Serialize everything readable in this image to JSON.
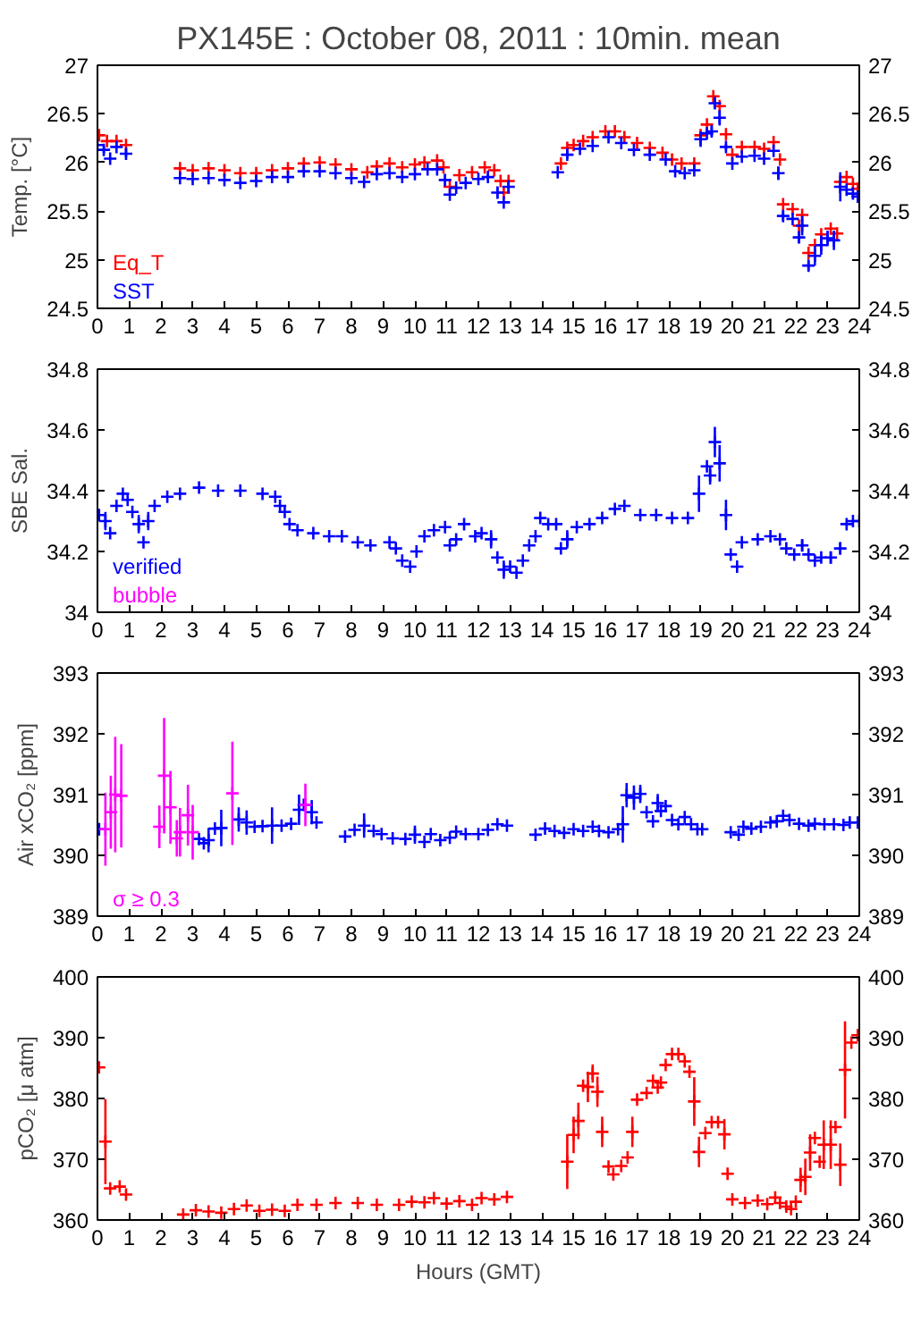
{
  "chart_data": [
    {
      "type": "scatter",
      "title": "PX145E : October 08, 2011 : 10min. mean",
      "ylabel": "Temp. [°C]",
      "xlim": [
        0,
        24
      ],
      "xticks": [
        0,
        1,
        2,
        3,
        4,
        5,
        6,
        7,
        8,
        9,
        10,
        11,
        12,
        13,
        14,
        15,
        16,
        17,
        18,
        19,
        20,
        21,
        22,
        23,
        24
      ],
      "ylim": [
        24.5,
        27
      ],
      "yticks": [
        24.5,
        25,
        25.5,
        26,
        26.5,
        27
      ],
      "y2lim": [
        24.5,
        27
      ],
      "y2ticks": [
        24.5,
        25,
        25.5,
        26,
        26.5,
        27
      ],
      "grid": false,
      "legend": "bottom left",
      "marker": "cross",
      "series": [
        {
          "name": "Eq_T",
          "color": "#ff0000",
          "x": [
            0.05,
            0.3,
            0.6,
            0.9,
            2.6,
            3,
            3.5,
            4,
            4.5,
            5,
            5.5,
            6,
            6.5,
            7,
            7.5,
            8,
            8.5,
            8.8,
            9.2,
            9.6,
            10,
            10.3,
            10.7,
            10.9,
            11.1,
            11.4,
            11.8,
            12.2,
            12.5,
            12.7,
            12.8,
            12.95,
            14.6,
            14.8,
            15,
            15.3,
            15.6,
            16,
            16.3,
            16.6,
            17,
            17.4,
            17.8,
            18.1,
            18.4,
            18.8,
            19,
            19.2,
            19.4,
            19.6,
            19.8,
            20,
            20.3,
            20.7,
            21,
            21.3,
            21.5,
            21.6,
            21.9,
            22.1,
            22.2,
            22.4,
            22.6,
            22.8,
            23.1,
            23.3,
            23.4,
            23.6,
            23.8,
            23.95
          ],
          "values": [
            26.28,
            26.22,
            26.22,
            26.18,
            25.94,
            25.92,
            25.94,
            25.92,
            25.89,
            25.89,
            25.92,
            25.94,
            25.99,
            26.0,
            25.98,
            25.93,
            25.9,
            25.96,
            25.99,
            25.95,
            25.98,
            26.0,
            26.02,
            25.95,
            25.75,
            25.87,
            25.9,
            25.95,
            25.92,
            25.81,
            25.69,
            25.81,
            25.99,
            26.15,
            26.18,
            26.22,
            26.26,
            26.32,
            26.32,
            26.26,
            26.2,
            26.15,
            26.1,
            26.03,
            25.99,
            25.99,
            26.28,
            26.39,
            26.68,
            26.58,
            26.29,
            26.08,
            26.16,
            26.16,
            26.14,
            26.21,
            26.03,
            25.57,
            25.52,
            25.35,
            25.46,
            25.07,
            25.15,
            25.26,
            25.32,
            25.27,
            25.8,
            25.85,
            25.78,
            25.73
          ]
        },
        {
          "name": "SST",
          "color": "#0000ff",
          "x": [
            0,
            0.2,
            0.4,
            0.6,
            0.9,
            2.6,
            3,
            3.5,
            4,
            4.5,
            5,
            5.5,
            6,
            6.5,
            7,
            7.5,
            8,
            8.4,
            8.8,
            9.2,
            9.6,
            10,
            10.4,
            10.7,
            10.95,
            11.1,
            11.3,
            11.6,
            12,
            12.3,
            12.6,
            12.8,
            12.95,
            14.5,
            14.8,
            15.2,
            15.6,
            16.1,
            16.5,
            16.9,
            17.4,
            17.9,
            18.2,
            18.5,
            18.8,
            19,
            19.2,
            19.35,
            19.45,
            19.6,
            19.8,
            20,
            20.3,
            20.7,
            21,
            21.3,
            21.45,
            21.6,
            21.9,
            22.1,
            22.2,
            22.4,
            22.6,
            22.8,
            23,
            23.2,
            23.4,
            23.6,
            23.8,
            23.95
          ],
          "values": [
            26.18,
            26.13,
            26.04,
            26.16,
            26.09,
            25.84,
            25.83,
            25.84,
            25.82,
            25.79,
            25.81,
            25.85,
            25.85,
            25.91,
            25.91,
            25.89,
            25.84,
            25.8,
            25.88,
            25.89,
            25.85,
            25.88,
            25.93,
            25.93,
            25.82,
            25.67,
            25.74,
            25.79,
            25.83,
            25.85,
            25.69,
            25.59,
            25.75,
            25.9,
            26.08,
            26.14,
            26.17,
            26.26,
            26.2,
            26.13,
            26.08,
            26.03,
            25.91,
            25.89,
            25.92,
            26.24,
            26.3,
            26.32,
            26.61,
            26.46,
            26.16,
            25.99,
            26.06,
            26.07,
            26.04,
            26.12,
            25.89,
            25.45,
            25.42,
            25.23,
            25.35,
            24.94,
            25.04,
            25.15,
            25.22,
            25.2,
            25.75,
            25.72,
            25.68,
            25.65
          ],
          "errors": [
            null,
            0.04,
            null,
            null,
            0.04,
            null,
            null,
            null,
            null,
            null,
            null,
            null,
            null,
            null,
            null,
            null,
            null,
            null,
            null,
            null,
            null,
            null,
            null,
            null,
            0.06,
            null,
            null,
            null,
            null,
            0.03,
            0.06,
            null,
            0.07,
            null,
            0.04,
            null,
            null,
            null,
            null,
            null,
            null,
            null,
            null,
            null,
            null,
            0.08,
            null,
            0.05,
            0.05,
            0.08,
            0.03,
            null,
            null,
            null,
            null,
            null,
            0.07,
            0.05,
            null,
            0.06,
            0.1,
            0.05,
            0.1,
            0.1,
            0.08,
            0.1,
            0.15,
            null,
            null,
            null
          ]
        }
      ]
    },
    {
      "type": "scatter",
      "ylabel": "SBE Sal.",
      "xlim": [
        0,
        24
      ],
      "xticks": [
        0,
        1,
        2,
        3,
        4,
        5,
        6,
        7,
        8,
        9,
        10,
        11,
        12,
        13,
        14,
        15,
        16,
        17,
        18,
        19,
        20,
        21,
        22,
        23,
        24
      ],
      "ylim": [
        34,
        34.8
      ],
      "yticks": [
        34,
        34.2,
        34.4,
        34.6,
        34.8
      ],
      "y2lim": [
        34,
        34.8
      ],
      "y2ticks": [
        34,
        34.2,
        34.4,
        34.6,
        34.8
      ],
      "grid": false,
      "legend": "bottom left",
      "marker": "cross",
      "series": [
        {
          "name": "verified",
          "color": "#0000ff",
          "x": [
            0.05,
            0.25,
            0.4,
            0.6,
            0.8,
            0.95,
            1.1,
            1.3,
            1.45,
            1.6,
            1.8,
            2.2,
            2.6,
            3.2,
            3.8,
            4.5,
            5.2,
            5.6,
            5.75,
            5.9,
            6.05,
            6.3,
            6.8,
            7.3,
            7.7,
            8.2,
            8.6,
            9.2,
            9.4,
            9.6,
            9.85,
            10.05,
            10.3,
            10.6,
            10.95,
            11.1,
            11.3,
            11.55,
            11.9,
            12.1,
            12.4,
            12.6,
            12.8,
            13.0,
            13.2,
            13.4,
            13.6,
            13.8,
            13.95,
            14.2,
            14.45,
            14.6,
            14.8,
            15.1,
            15.5,
            15.9,
            16.3,
            16.6,
            17.1,
            17.6,
            18.1,
            18.6,
            18.95,
            19.2,
            19.3,
            19.45,
            19.6,
            19.8,
            19.95,
            20.15,
            20.3,
            20.8,
            21.2,
            21.5,
            21.7,
            21.95,
            22.2,
            22.4,
            22.6,
            22.8,
            23.1,
            23.4,
            23.6,
            23.8,
            24
          ],
          "values": [
            34.32,
            34.3,
            34.26,
            34.35,
            34.39,
            34.37,
            34.33,
            34.29,
            34.23,
            34.3,
            34.35,
            34.38,
            34.39,
            34.41,
            34.4,
            34.4,
            34.39,
            34.38,
            34.35,
            34.33,
            34.29,
            34.27,
            34.26,
            34.25,
            34.25,
            34.23,
            34.22,
            34.23,
            34.21,
            34.17,
            34.15,
            34.2,
            34.25,
            34.27,
            34.28,
            34.22,
            34.24,
            34.29,
            34.25,
            34.26,
            34.24,
            34.18,
            34.14,
            34.15,
            34.13,
            34.17,
            34.22,
            34.25,
            34.31,
            34.29,
            34.29,
            34.21,
            34.24,
            34.28,
            34.29,
            34.31,
            34.34,
            34.35,
            34.32,
            34.32,
            34.31,
            34.31,
            34.39,
            34.48,
            34.45,
            34.56,
            34.49,
            34.32,
            34.19,
            34.15,
            34.23,
            34.24,
            34.25,
            34.24,
            34.21,
            34.19,
            34.22,
            34.19,
            34.17,
            34.18,
            34.18,
            34.21,
            34.29,
            34.3,
            34.3
          ],
          "errors": [
            null,
            0.03,
            null,
            null,
            null,
            null,
            null,
            0.03,
            null,
            0.03,
            null,
            null,
            null,
            null,
            null,
            null,
            null,
            null,
            null,
            null,
            null,
            null,
            null,
            null,
            null,
            null,
            null,
            null,
            null,
            null,
            null,
            null,
            null,
            null,
            null,
            null,
            null,
            null,
            null,
            null,
            0.03,
            null,
            0.03,
            null,
            null,
            null,
            null,
            null,
            null,
            null,
            null,
            null,
            0.03,
            null,
            null,
            null,
            null,
            null,
            null,
            null,
            null,
            null,
            0.06,
            null,
            0.03,
            0.05,
            0.06,
            0.05,
            null,
            null,
            null,
            null,
            null,
            null,
            null,
            null,
            0.02,
            null,
            null,
            null,
            0.02,
            0.02,
            null,
            null,
            null
          ]
        },
        {
          "name": "bubble",
          "color": "#ff00ff"
        }
      ]
    },
    {
      "type": "scatter",
      "ylabel": "Air xCO₂ [ppm]",
      "xlim": [
        0,
        24
      ],
      "xticks": [
        0,
        1,
        2,
        3,
        4,
        5,
        6,
        7,
        8,
        9,
        10,
        11,
        12,
        13,
        14,
        15,
        16,
        17,
        18,
        19,
        20,
        21,
        22,
        23,
        24
      ],
      "ylim": [
        389,
        393
      ],
      "yticks": [
        389,
        390,
        391,
        392,
        393
      ],
      "y2lim": [
        389,
        393
      ],
      "y2ticks": [
        389,
        390,
        391,
        392,
        393
      ],
      "grid": false,
      "legend": "bottom left",
      "marker": "cross",
      "series": [
        {
          "color": "#0000ff",
          "x": [
            0.05,
            3.2,
            3.35,
            3.5,
            3.7,
            3.9,
            4.45,
            4.7,
            4.95,
            5.2,
            5.5,
            5.8,
            6.1,
            6.35,
            6.5,
            6.75,
            6.9,
            7.8,
            8.1,
            8.4,
            8.7,
            8.95,
            9.3,
            9.7,
            10.0,
            10.3,
            10.5,
            10.8,
            11.1,
            11.3,
            11.6,
            12.0,
            12.3,
            12.6,
            12.9,
            13.8,
            14.1,
            14.4,
            14.7,
            15.0,
            15.3,
            15.6,
            15.8,
            16.1,
            16.4,
            16.55,
            16.67,
            16.9,
            17.1,
            17.3,
            17.5,
            17.65,
            17.75,
            17.9,
            18.1,
            18.3,
            18.5,
            18.7,
            18.9,
            19.05,
            19.95,
            20.2,
            20.35,
            20.6,
            20.9,
            21.2,
            21.4,
            21.6,
            21.8,
            22.1,
            22.4,
            22.6,
            22.9,
            23.2,
            23.5,
            23.7,
            23.95
          ],
          "values": [
            390.43,
            390.27,
            390.2,
            390.25,
            390.44,
            390.45,
            390.59,
            390.54,
            390.47,
            390.48,
            390.49,
            390.49,
            390.52,
            390.75,
            390.83,
            390.71,
            390.54,
            390.31,
            390.42,
            390.49,
            390.4,
            390.35,
            390.28,
            390.27,
            390.34,
            390.22,
            390.35,
            390.25,
            390.29,
            390.39,
            390.35,
            390.35,
            390.42,
            390.51,
            390.49,
            390.34,
            390.44,
            390.4,
            390.37,
            390.43,
            390.4,
            390.47,
            390.4,
            390.38,
            390.43,
            390.51,
            390.99,
            390.95,
            391.01,
            390.71,
            390.56,
            390.86,
            390.73,
            390.81,
            390.58,
            390.51,
            390.63,
            390.51,
            390.43,
            390.43,
            390.38,
            390.34,
            390.47,
            390.44,
            390.47,
            390.54,
            390.56,
            390.65,
            390.58,
            390.52,
            390.49,
            390.52,
            390.51,
            390.51,
            390.5,
            390.54,
            390.54
          ],
          "errors": [
            0.1,
            null,
            null,
            0.2,
            null,
            0.3,
            0.2,
            0.2,
            null,
            null,
            0.3,
            null,
            null,
            0.25,
            null,
            0.2,
            null,
            null,
            null,
            0.2,
            null,
            null,
            null,
            null,
            0.15,
            null,
            null,
            null,
            null,
            null,
            null,
            null,
            null,
            null,
            null,
            null,
            null,
            null,
            null,
            null,
            null,
            null,
            null,
            null,
            null,
            0.3,
            0.2,
            0.2,
            0.15,
            null,
            null,
            0.15,
            null,
            null,
            null,
            null,
            null,
            null,
            null,
            null,
            null,
            null,
            null,
            null,
            null,
            null,
            null,
            null,
            null,
            null,
            null,
            null,
            null,
            null,
            null,
            null,
            null
          ]
        },
        {
          "name": "σ ≥ 0.3",
          "color": "#ff00ff",
          "x": [
            0.25,
            0.42,
            0.56,
            0.75,
            1.95,
            2.1,
            2.3,
            2.5,
            2.6,
            2.85,
            3.0,
            4.25,
            6.55
          ],
          "values": [
            390.43,
            390.71,
            391.0,
            390.98,
            390.47,
            391.31,
            390.79,
            390.28,
            390.38,
            390.66,
            390.38,
            391.02,
            390.83
          ],
          "errors": [
            0.6,
            0.6,
            0.95,
            0.85,
            0.35,
            0.95,
            0.6,
            0.3,
            0.4,
            0.5,
            0.45,
            0.85,
            0.35
          ]
        }
      ]
    },
    {
      "type": "scatter",
      "ylabel": "pCO₂ [μ atm]",
      "xlabel": "Hours (GMT)",
      "xlim": [
        0,
        24
      ],
      "xticks": [
        0,
        1,
        2,
        3,
        4,
        5,
        6,
        7,
        8,
        9,
        10,
        11,
        12,
        13,
        14,
        15,
        16,
        17,
        18,
        19,
        20,
        21,
        22,
        23,
        24
      ],
      "ylim": [
        360,
        400
      ],
      "yticks": [
        360,
        370,
        380,
        390,
        400
      ],
      "y2lim": [
        360,
        400
      ],
      "y2ticks": [
        360,
        370,
        380,
        390,
        400
      ],
      "grid": false,
      "marker": "cross",
      "series": [
        {
          "color": "#ff0000",
          "x": [
            0.05,
            0.25,
            0.4,
            0.7,
            0.9,
            2.7,
            3.1,
            3.5,
            3.9,
            4.3,
            4.7,
            5.1,
            5.5,
            5.9,
            6.3,
            6.9,
            7.5,
            8.2,
            8.8,
            9.5,
            9.9,
            10.3,
            10.6,
            11.0,
            11.4,
            11.8,
            12.1,
            12.5,
            12.9,
            14.8,
            15.0,
            15.15,
            15.3,
            15.45,
            15.6,
            15.75,
            15.9,
            16.1,
            16.25,
            16.5,
            16.7,
            16.85,
            17.0,
            17.3,
            17.5,
            17.65,
            17.75,
            17.9,
            18.1,
            18.3,
            18.5,
            18.65,
            18.8,
            18.95,
            19.15,
            19.35,
            19.55,
            19.75,
            19.85,
            20.0,
            20.4,
            20.8,
            21.1,
            21.35,
            21.5,
            21.7,
            21.85,
            22.0,
            22.15,
            22.3,
            22.45,
            22.6,
            22.75,
            22.88,
            23.1,
            23.25,
            23.4,
            23.55,
            23.75,
            23.95
          ],
          "values": [
            385.1,
            372.9,
            365.2,
            365.5,
            364.2,
            360.9,
            361.6,
            361.4,
            361.2,
            361.8,
            362.4,
            361.5,
            361.7,
            361.5,
            362.5,
            362.5,
            362.8,
            362.8,
            362.5,
            362.5,
            363.0,
            362.9,
            363.6,
            362.7,
            363.1,
            362.5,
            363.6,
            363.4,
            363.8,
            369.6,
            374.0,
            376.3,
            382.1,
            381.9,
            384.1,
            381.1,
            374.5,
            368.8,
            367.5,
            368.9,
            370.3,
            374.5,
            379.8,
            380.9,
            382.9,
            381.8,
            382.6,
            385.5,
            387.3,
            387.3,
            386.1,
            384.4,
            379.5,
            371.2,
            374.3,
            376.1,
            376.1,
            374.1,
            367.6,
            363.4,
            362.8,
            363.2,
            362.6,
            363.7,
            362.8,
            362.2,
            361.8,
            363.0,
            366.6,
            367.1,
            371.1,
            373.5,
            369.6,
            372.4,
            372.4,
            375.3,
            369.1,
            384.7,
            389.2,
            390.4
          ],
          "errors": [
            null,
            7,
            null,
            null,
            null,
            null,
            null,
            null,
            null,
            null,
            null,
            null,
            null,
            null,
            null,
            null,
            null,
            null,
            null,
            null,
            null,
            null,
            null,
            null,
            null,
            null,
            null,
            null,
            null,
            4.5,
            3,
            3,
            null,
            2.5,
            1.5,
            2.5,
            2.5,
            null,
            null,
            null,
            null,
            2.5,
            null,
            null,
            null,
            null,
            null,
            null,
            null,
            null,
            null,
            null,
            4,
            2.5,
            null,
            null,
            null,
            2.5,
            null,
            null,
            null,
            null,
            null,
            null,
            null,
            null,
            null,
            null,
            2,
            3,
            3,
            null,
            null,
            4,
            4,
            null,
            3.5,
            8,
            null,
            null
          ]
        }
      ]
    }
  ]
}
